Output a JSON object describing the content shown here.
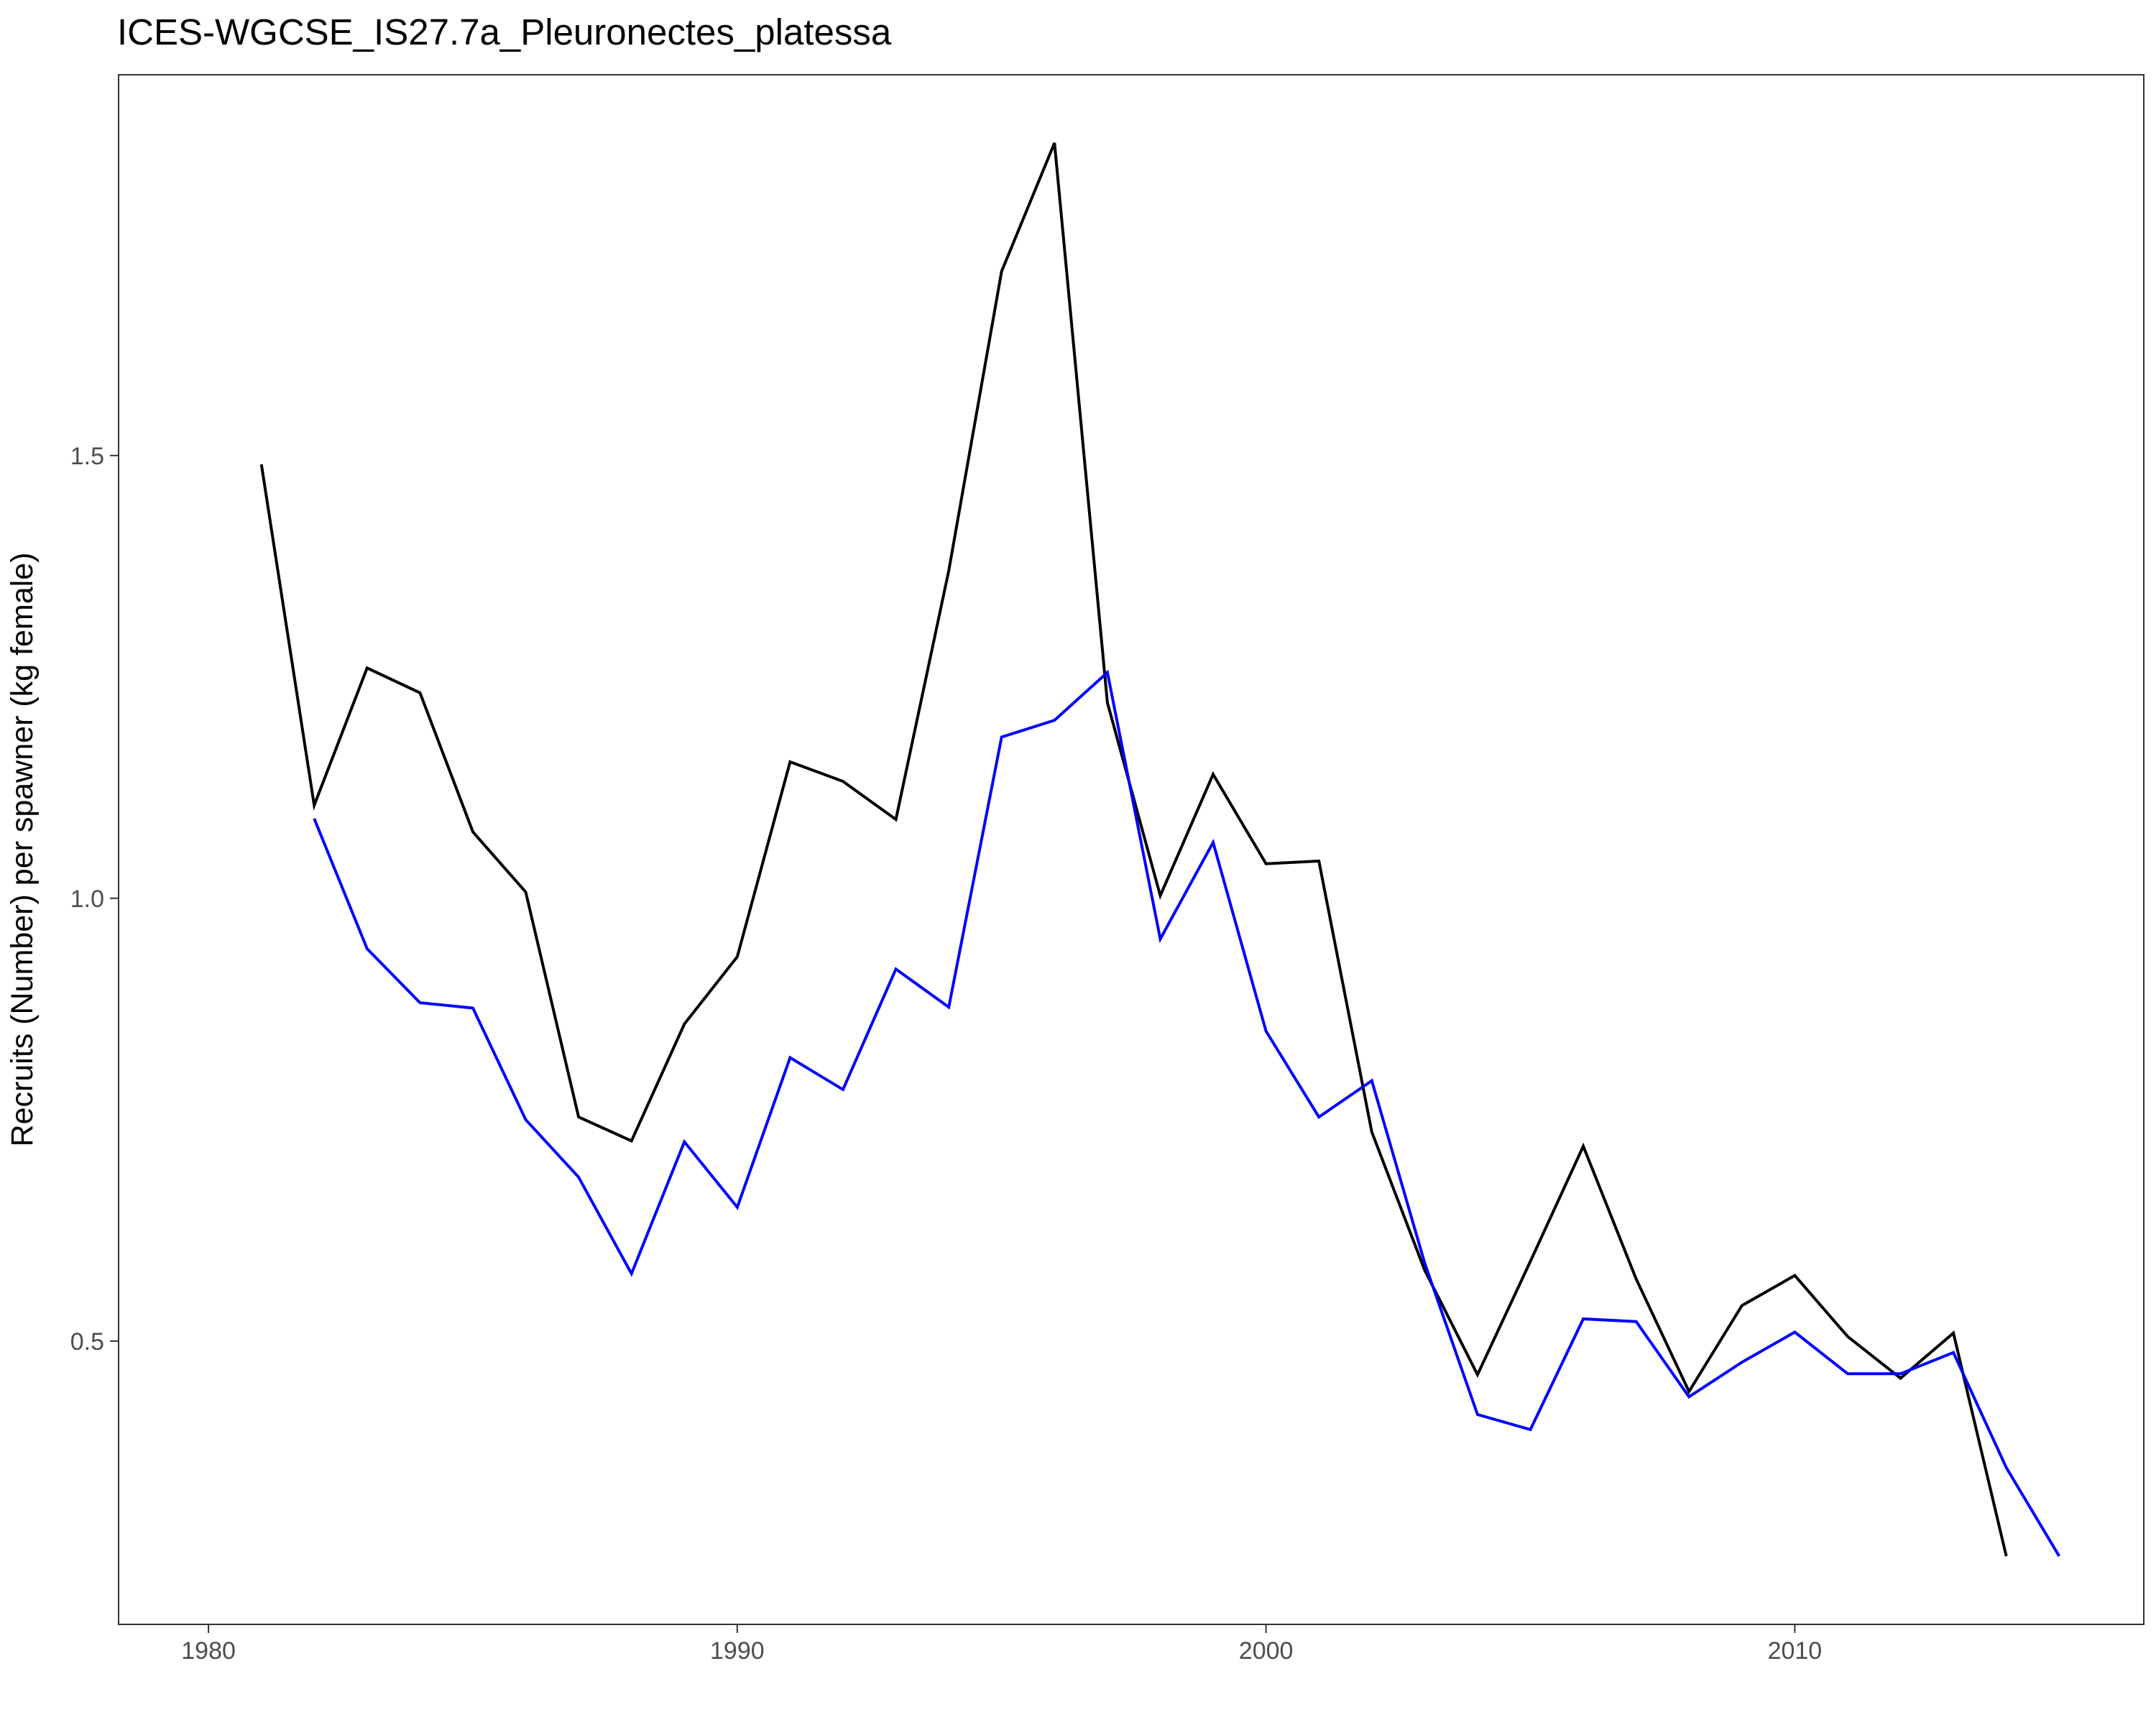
{
  "chart_data": {
    "type": "line",
    "title": "ICES-WGCSE_IS27.7a_Pleuronectes_platessa",
    "xlabel": "",
    "ylabel": "Recruits (Number) per spawner (kg female)",
    "xlim": [
      1978.3,
      2016.6
    ],
    "ylim": [
      0.18,
      1.93
    ],
    "x_ticks": [
      1980,
      1990,
      2000,
      2010
    ],
    "y_ticks": [
      0.5,
      1.0,
      1.5
    ],
    "x_tick_labels": [
      "1980",
      "1990",
      "2000",
      "2010"
    ],
    "y_tick_labels": [
      "0.5",
      "1.0",
      "1.5"
    ],
    "grid": false,
    "legend": "none",
    "series": [
      {
        "color": "#000000",
        "x": [
          1981,
          1982,
          1983,
          1984,
          1985,
          1986,
          1987,
          1988,
          1989,
          1990,
          1991,
          1992,
          1993,
          1994,
          1995,
          1996,
          1997,
          1998,
          1999,
          2000,
          2001,
          2002,
          2003,
          2004,
          2005,
          2006,
          2007,
          2008,
          2009,
          2010,
          2011,
          2012,
          2013,
          2014
        ],
        "values": [
          1.49,
          1.105,
          1.26,
          1.232,
          1.075,
          1.007,
          0.753,
          0.726,
          0.858,
          0.934,
          1.154,
          1.132,
          1.089,
          1.37,
          1.708,
          1.853,
          1.221,
          1.003,
          1.14,
          1.039,
          1.042,
          0.736,
          0.58,
          0.462,
          0.59,
          0.72,
          0.57,
          0.443,
          0.54,
          0.574,
          0.505,
          0.458,
          0.509,
          0.257
        ]
      },
      {
        "color": "#0000ff",
        "x": [
          1982,
          1983,
          1984,
          1985,
          1986,
          1987,
          1988,
          1989,
          1990,
          1991,
          1992,
          1993,
          1994,
          1995,
          1996,
          1997,
          1998,
          1999,
          2000,
          2001,
          2002,
          2003,
          2004,
          2005,
          2006,
          2007,
          2008,
          2009,
          2010,
          2011,
          2012,
          2013,
          2014,
          2015
        ],
        "values": [
          1.09,
          0.943,
          0.882,
          0.876,
          0.75,
          0.685,
          0.576,
          0.725,
          0.651,
          0.82,
          0.784,
          0.92,
          0.877,
          1.182,
          1.201,
          1.255,
          0.954,
          1.063,
          0.85,
          0.753,
          0.794,
          0.588,
          0.417,
          0.4,
          0.525,
          0.522,
          0.437,
          0.476,
          0.51,
          0.463,
          0.463,
          0.487,
          0.357,
          0.257
        ]
      }
    ]
  }
}
